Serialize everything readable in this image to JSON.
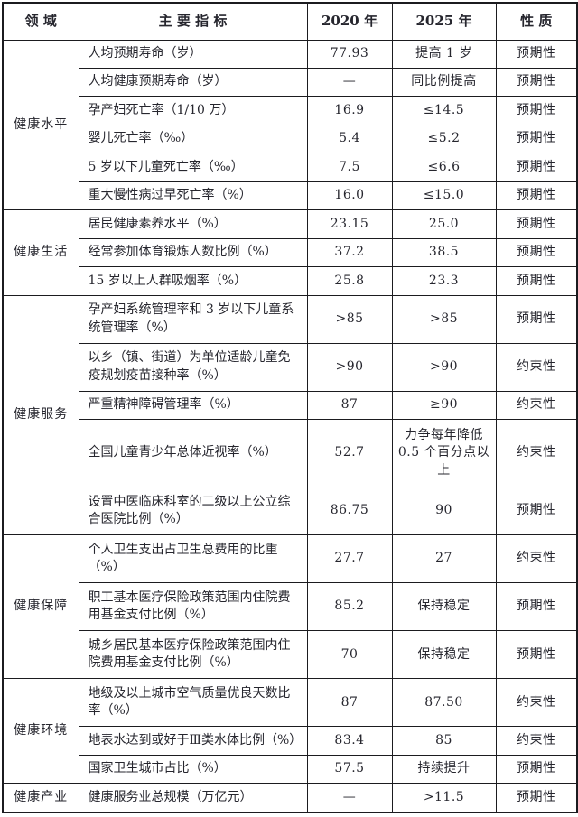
{
  "colors": {
    "background": "#ffffff",
    "border": "#1b1b1f",
    "text": "#26262e"
  },
  "chart_data": {
    "type": "table",
    "columns": [
      "领 域",
      "主 要 指 标",
      "2020 年",
      "2025 年",
      "性 质"
    ],
    "sections": [
      {
        "domain": "健康水平",
        "rows": [
          {
            "indicator": "人均预期寿命（岁）",
            "y2020": "77.93",
            "y2025": "提高 1 岁",
            "nature": "预期性"
          },
          {
            "indicator": "人均健康预期寿命（岁）",
            "y2020": "—",
            "y2025": "同比例提高",
            "nature": "预期性"
          },
          {
            "indicator": "孕产妇死亡率（1/10 万）",
            "y2020": "16.9",
            "y2025": "≤14.5",
            "nature": "预期性"
          },
          {
            "indicator": "婴儿死亡率（‰）",
            "y2020": "5.4",
            "y2025": "≤5.2",
            "nature": "预期性"
          },
          {
            "indicator": "5 岁以下儿童死亡率（‰）",
            "y2020": "7.5",
            "y2025": "≤6.6",
            "nature": "预期性"
          },
          {
            "indicator": "重大慢性病过早死亡率（%）",
            "y2020": "16.0",
            "y2025": "≤15.0",
            "nature": "预期性"
          }
        ]
      },
      {
        "domain": "健康生活",
        "rows": [
          {
            "indicator": "居民健康素养水平（%）",
            "y2020": "23.15",
            "y2025": "25.0",
            "nature": "预期性"
          },
          {
            "indicator": "经常参加体育锻炼人数比例（%）",
            "y2020": "37.2",
            "y2025": "38.5",
            "nature": "预期性"
          },
          {
            "indicator": "15 岁以上人群吸烟率（%）",
            "y2020": "25.8",
            "y2025": "23.3",
            "nature": "预期性"
          }
        ]
      },
      {
        "domain": "健康服务",
        "rows": [
          {
            "indicator": "孕产妇系统管理率和 3 岁以下儿童系统管理率（%）",
            "y2020": ">85",
            "y2025": ">85",
            "nature": "预期性"
          },
          {
            "indicator": "以乡（镇、街道）为单位适龄儿童免疫规划疫苗接种率（%）",
            "y2020": ">90",
            "y2025": ">90",
            "nature": "约束性"
          },
          {
            "indicator": "严重精神障碍管理率（%）",
            "y2020": "87",
            "y2025": "≥90",
            "nature": "约束性"
          },
          {
            "indicator": "全国儿童青少年总体近视率（%）",
            "y2020": "52.7",
            "y2025": "力争每年降低 0.5 个百分点以上",
            "nature": "约束性"
          },
          {
            "indicator": "设置中医临床科室的二级以上公立综合医院比例（%）",
            "y2020": "86.75",
            "y2025": "90",
            "nature": "预期性"
          }
        ]
      },
      {
        "domain": "健康保障",
        "rows": [
          {
            "indicator": "个人卫生支出占卫生总费用的比重（%）",
            "y2020": "27.7",
            "y2025": "27",
            "nature": "约束性"
          },
          {
            "indicator": "职工基本医疗保险政策范围内住院费用基金支付比例（%）",
            "y2020": "85.2",
            "y2025": "保持稳定",
            "nature": "预期性"
          },
          {
            "indicator": "城乡居民基本医疗保险政策范围内住院费用基金支付比例（%）",
            "y2020": "70",
            "y2025": "保持稳定",
            "nature": "预期性"
          }
        ]
      },
      {
        "domain": "健康环境",
        "rows": [
          {
            "indicator": "地级及以上城市空气质量优良天数比率（%）",
            "y2020": "87",
            "y2025": "87.50",
            "nature": "约束性"
          },
          {
            "indicator": "地表水达到或好于Ⅲ类水体比例（%）",
            "y2020": "83.4",
            "y2025": "85",
            "nature": "约束性"
          },
          {
            "indicator": "国家卫生城市占比（%）",
            "y2020": "57.5",
            "y2025": "持续提升",
            "nature": "预期性"
          }
        ]
      },
      {
        "domain": "健康产业",
        "rows": [
          {
            "indicator": "健康服务业总规模（万亿元）",
            "y2020": "—",
            "y2025": ">11.5",
            "nature": "预期性"
          }
        ]
      }
    ]
  }
}
